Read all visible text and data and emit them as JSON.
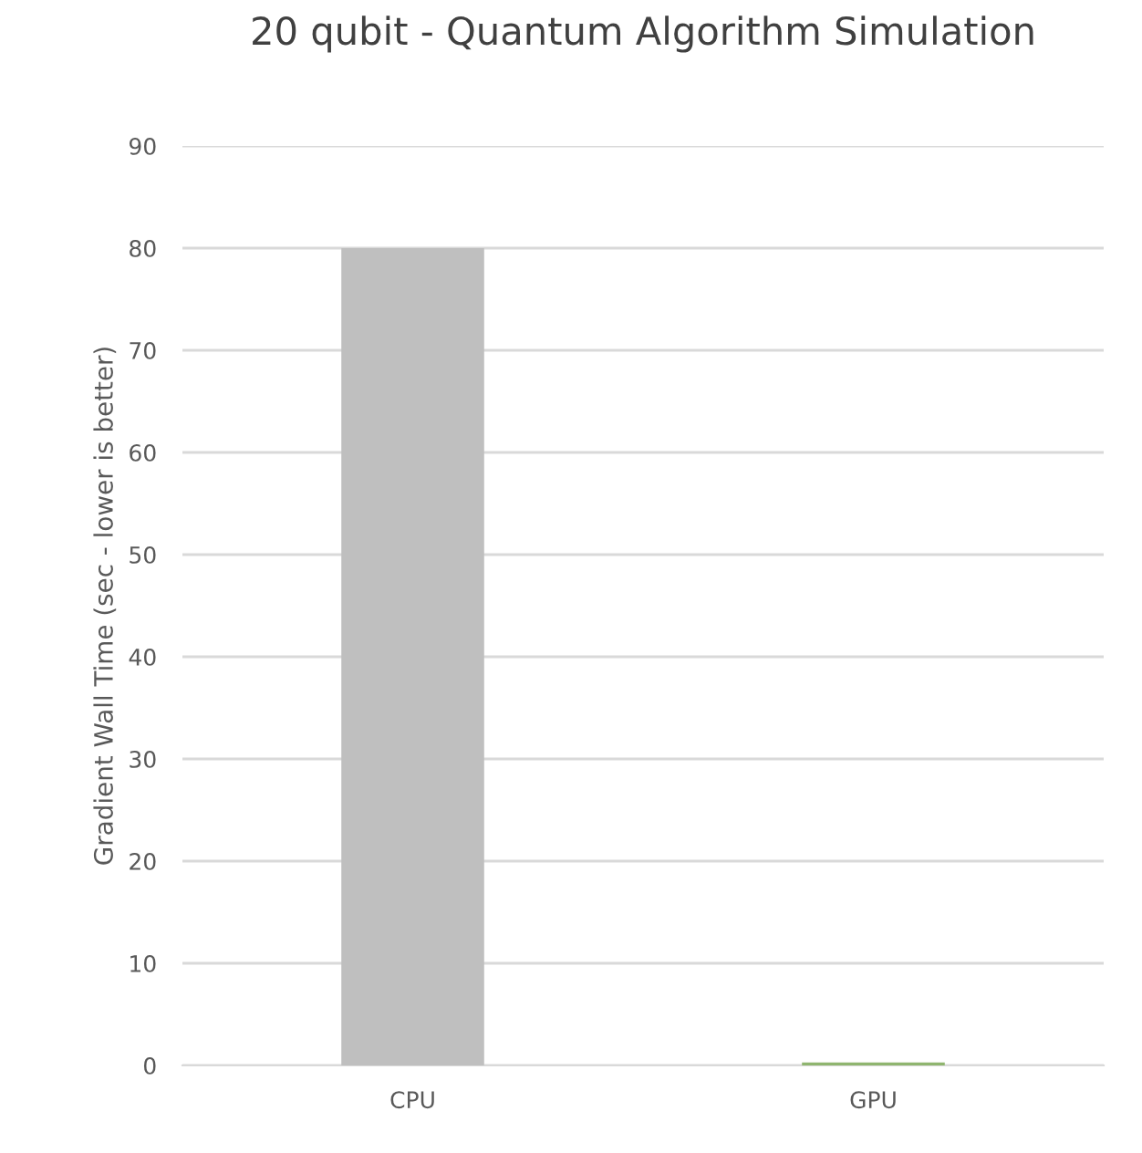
{
  "chart_data": {
    "type": "bar",
    "title": "20 qubit - Quantum Algorithm Simulation",
    "ylabel": "Gradient Wall Time (sec - lower is better)",
    "categories": [
      "CPU",
      "GPU"
    ],
    "values": [
      80,
      0.3
    ],
    "colors": [
      "#bfbfbf",
      "#8fb56f"
    ],
    "ylim": [
      0,
      90
    ],
    "yticks": [
      0,
      10,
      20,
      30,
      40,
      50,
      60,
      70,
      80,
      90
    ],
    "grid": "y"
  }
}
